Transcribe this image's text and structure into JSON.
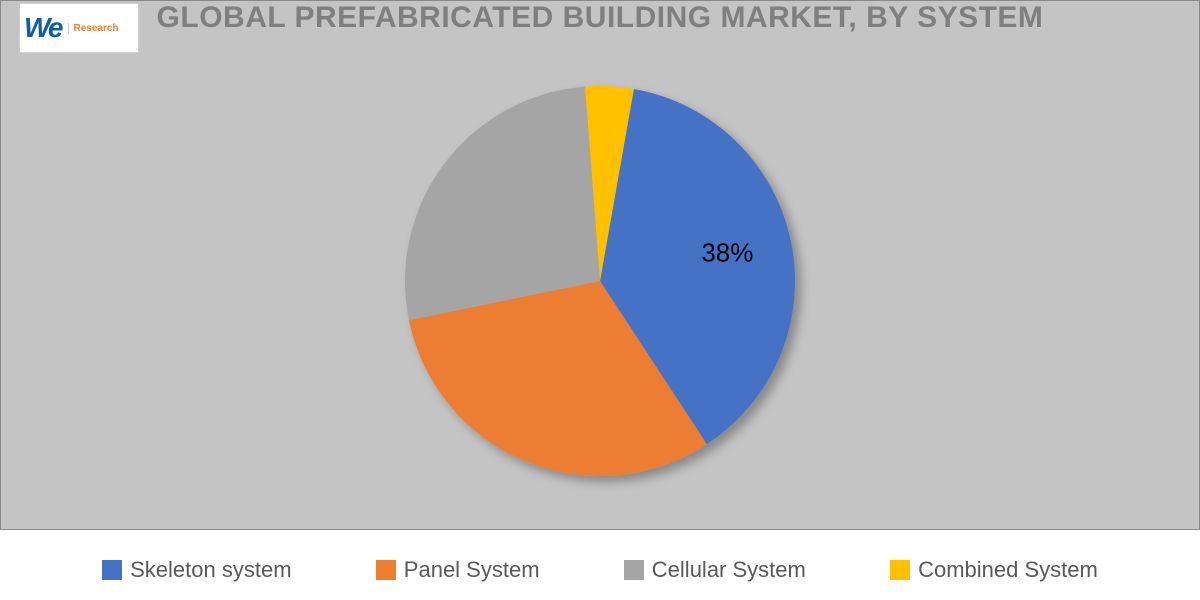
{
  "title": "GLOBAL PREFABRICATED BUILDING MARKET, BY SYSTEM",
  "logo": {
    "brand": "We",
    "line1": "",
    "line2": "Research"
  },
  "chart": {
    "type": "pie",
    "background_color": "#c4c4c4",
    "title_color": "#7f7f7f",
    "title_fontsize": 30,
    "slices": [
      {
        "name": "Skeleton system",
        "value": 38,
        "color": "#4472c4",
        "label": "38%",
        "show_label": true
      },
      {
        "name": "Panel System",
        "value": 31,
        "color": "#ed7d31",
        "show_label": false
      },
      {
        "name": "Cellular System",
        "value": 27,
        "color": "#a5a5a5",
        "show_label": false
      },
      {
        "name": "Combined System",
        "value": 4,
        "color": "#ffc000",
        "show_label": false
      }
    ],
    "start_angle_deg": -80,
    "direction": "clockwise",
    "radius": 195,
    "data_label_fontsize": 26,
    "data_label_color": "#000000",
    "data_label_offset": 130,
    "shadow_color": "rgba(0,0,0,0.3)",
    "shadow_blur": 8,
    "shadow_dx": 6,
    "shadow_dy": 6
  },
  "legend": {
    "background_color": "#ffffff",
    "text_color": "#595959",
    "fontsize": 22,
    "swatch_size": 20
  }
}
